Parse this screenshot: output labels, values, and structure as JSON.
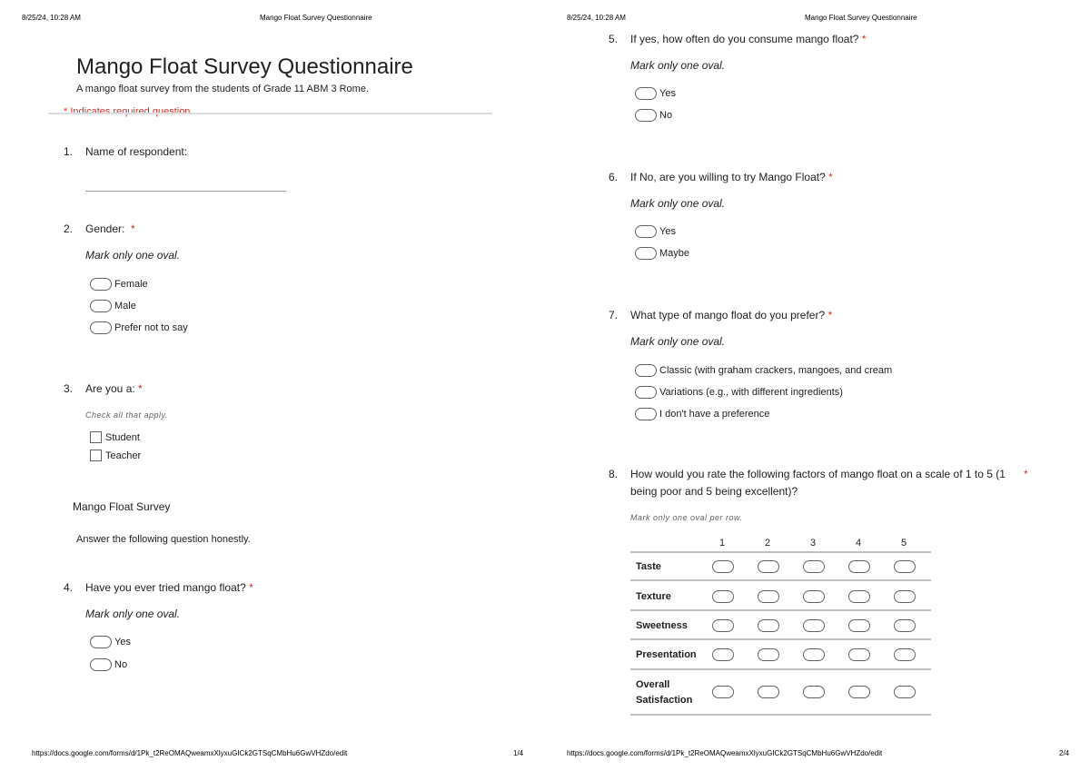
{
  "header": {
    "datetime": "8/25/24, 10:28 AM",
    "doc_title": "Mango Float Survey Questionnaire"
  },
  "footer": {
    "url": "https://docs.google.com/forms/d/1Pk_t2ReOMAQweamxXlyxuGICk2GTSqCMbHu6GwVHZdo/edit",
    "page1": "1/4",
    "page2": "2/4"
  },
  "form": {
    "title": "Mango Float Survey Questionnaire",
    "description": "A mango float survey from the students of Grade 11  ABM 3 Rome.",
    "required_note": "* Indicates required question",
    "required_star": "*",
    "mark_one": "Mark only one oval.",
    "check_all": "Check all that apply.",
    "mark_per_row": "Mark only one oval per row."
  },
  "questions": [
    {
      "num": "1.",
      "text": "Name of respondent:"
    },
    {
      "num": "2.",
      "text": "Gender:",
      "options": [
        "Female",
        "Male",
        "Prefer not to say"
      ]
    },
    {
      "num": "3.",
      "text": "Are you a:",
      "options": [
        "Student",
        "Teacher"
      ]
    },
    {
      "num": "4.",
      "text": "Have you ever tried mango float?",
      "options": [
        "Yes",
        "No"
      ]
    },
    {
      "num": "5.",
      "text": "If yes, how often do you consume mango float?",
      "options": [
        "Yes",
        "No"
      ]
    },
    {
      "num": "6.",
      "text": "If No, are you willing to try Mango Float?",
      "options": [
        "Yes",
        "Maybe"
      ]
    },
    {
      "num": "7.",
      "text": "What type of mango float do you prefer?",
      "options": [
        "Classic (with graham crackers, mangoes, and cream",
        "Variations (e.g., with different ingredients)",
        "I don't have a preference"
      ]
    },
    {
      "num": "8.",
      "text_line1": "How would you rate the following factors of mango float on a scale of 1 to 5 (1",
      "text_line2": "being poor and 5 being excellent)?",
      "columns": [
        "1",
        "2",
        "3",
        "4",
        "5"
      ],
      "rows": [
        "Taste",
        "Texture",
        "Sweetness",
        "Presentation",
        "Overall",
        "Satisfaction"
      ]
    }
  ],
  "section": {
    "title": "Mango Float Survey",
    "description": "Answer the following question honestly."
  }
}
